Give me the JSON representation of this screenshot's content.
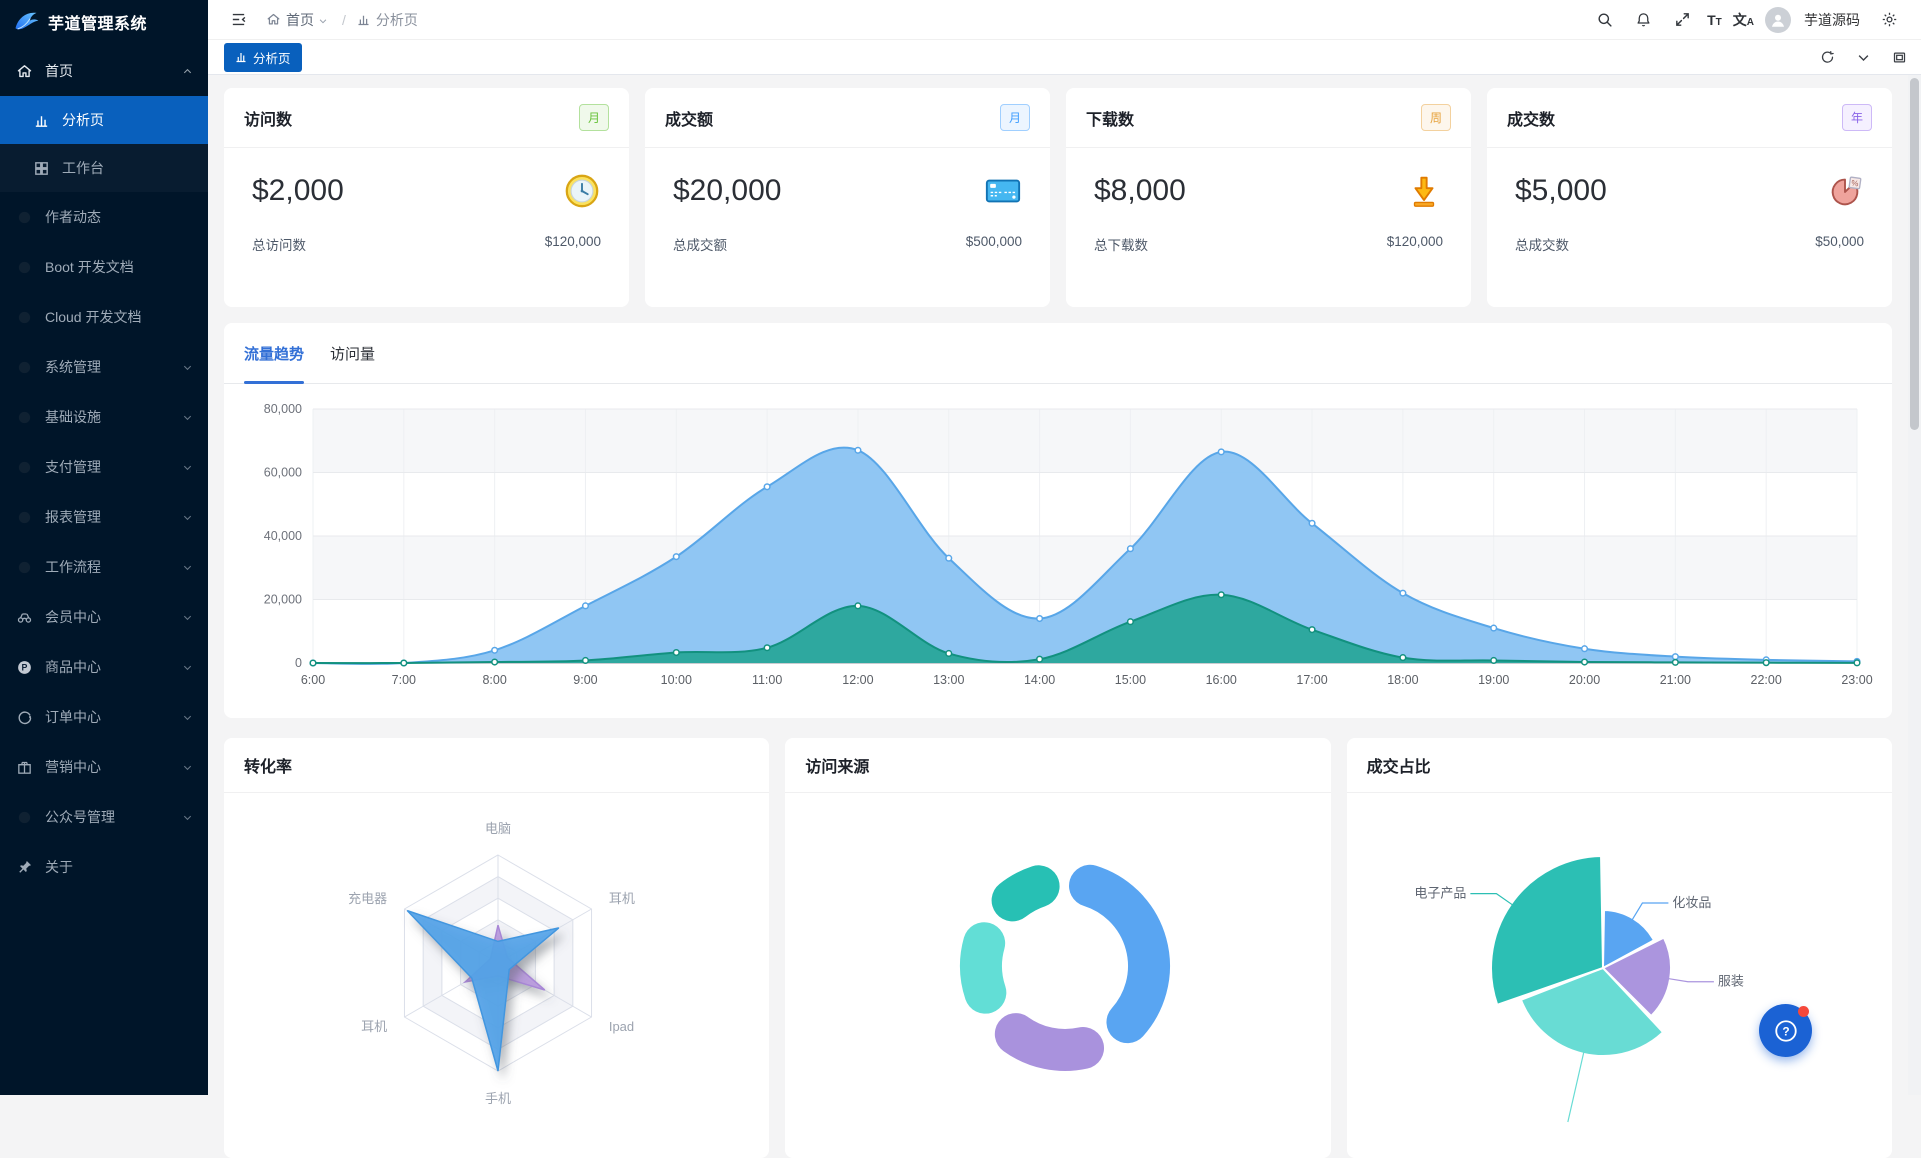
{
  "sidebar": {
    "logo_text": "芋道管理系统",
    "items": [
      {
        "label": "首页",
        "icon": "home",
        "chevron": "up",
        "style": "top-first"
      },
      {
        "label": "分析页",
        "icon": "chart",
        "style": "sub active"
      },
      {
        "label": "工作台",
        "icon": "grid",
        "style": "sub"
      },
      {
        "label": "作者动态",
        "icon": "dot",
        "style": "dim"
      },
      {
        "label": "Boot 开发文档",
        "icon": "dot",
        "style": "dim"
      },
      {
        "label": "Cloud 开发文档",
        "icon": "dot",
        "style": "dim"
      },
      {
        "label": "系统管理",
        "icon": "dot",
        "chevron": "down",
        "style": "dim"
      },
      {
        "label": "基础设施",
        "icon": "dot",
        "chevron": "down",
        "style": "dim"
      },
      {
        "label": "支付管理",
        "icon": "dot",
        "chevron": "down",
        "style": "dim"
      },
      {
        "label": "报表管理",
        "icon": "dot",
        "chevron": "down",
        "style": "dim"
      },
      {
        "label": "工作流程",
        "icon": "dot",
        "chevron": "down",
        "style": "dim"
      },
      {
        "label": "会员中心",
        "icon": "member",
        "chevron": "down",
        "style": ""
      },
      {
        "label": "商品中心",
        "icon": "product",
        "chevron": "down",
        "style": ""
      },
      {
        "label": "订单中心",
        "icon": "order",
        "chevron": "down",
        "style": ""
      },
      {
        "label": "营销中心",
        "icon": "gift",
        "chevron": "down",
        "style": ""
      },
      {
        "label": "公众号管理",
        "icon": "dot",
        "chevron": "down",
        "style": "dim"
      },
      {
        "label": "关于",
        "icon": "pin",
        "style": ""
      }
    ]
  },
  "navbar": {
    "breadcrumb": {
      "home": "首页",
      "separator": "/",
      "current": "分析页"
    },
    "username": "芋道源码"
  },
  "tabbar": {
    "active_tab": "分析页"
  },
  "stat_cards": [
    {
      "title": "访问数",
      "badge": {
        "text": "月",
        "color": "#67c23a",
        "bg": "#f0f9eb",
        "border": "#b3e19d"
      },
      "value": "$2,000",
      "icon": "clock",
      "footer_label": "总访问数",
      "footer_value": "$120,000"
    },
    {
      "title": "成交额",
      "badge": {
        "text": "月",
        "color": "#409eff",
        "bg": "#ecf5ff",
        "border": "#a0cfff"
      },
      "value": "$20,000",
      "icon": "credit-card",
      "footer_label": "总成交额",
      "footer_value": "$500,000"
    },
    {
      "title": "下载数",
      "badge": {
        "text": "周",
        "color": "#e6a23c",
        "bg": "#fdf6ec",
        "border": "#f3d19e"
      },
      "value": "$8,000",
      "icon": "download",
      "footer_label": "总下载数",
      "footer_value": "$120,000"
    },
    {
      "title": "成交数",
      "badge": {
        "text": "年",
        "color": "#8a63e8",
        "bg": "#f5f0ff",
        "border": "#cdb9f7"
      },
      "value": "$5,000",
      "icon": "pie",
      "footer_label": "总成交数",
      "footer_value": "$50,000"
    }
  ],
  "trend_panel": {
    "tabs": [
      "流量趋势",
      "访问量"
    ],
    "active_index": 0
  },
  "panels": {
    "conversion_title": "转化率",
    "source_title": "访问来源",
    "deal_title": "成交占比"
  },
  "chart_data": [
    {
      "id": "traffic-trend",
      "type": "area",
      "title": "流量趋势",
      "x": [
        "6:00",
        "7:00",
        "8:00",
        "9:00",
        "10:00",
        "11:00",
        "12:00",
        "13:00",
        "14:00",
        "15:00",
        "16:00",
        "17:00",
        "18:00",
        "19:00",
        "20:00",
        "21:00",
        "22:00",
        "23:00"
      ],
      "ylim": [
        0,
        80000
      ],
      "yticks": [
        "0",
        "20,000",
        "40,000",
        "60,000",
        "80,000"
      ],
      "grid": "alternating-split-area",
      "legend": "none",
      "series": [
        {
          "name": "series-1",
          "line_color": "#58a6e8",
          "fill_color": "#8bc4f2",
          "values": [
            0,
            0,
            4000,
            18000,
            33500,
            55500,
            67000,
            33000,
            14000,
            36000,
            66500,
            44000,
            22000,
            11000,
            4500,
            2000,
            1000,
            500
          ]
        },
        {
          "name": "series-2",
          "line_color": "#12917f",
          "fill_color": "#2aa79b",
          "values": [
            0,
            0,
            300,
            800,
            3300,
            4800,
            18000,
            3000,
            1200,
            13000,
            21500,
            10500,
            1700,
            800,
            300,
            200,
            100,
            50
          ]
        }
      ]
    },
    {
      "id": "conversion-radar",
      "type": "radar",
      "title": "转化率",
      "indicators": [
        "电脑",
        "耳机",
        "Ipad",
        "手机",
        "耳机",
        "充电器"
      ],
      "max": 100,
      "levels": 5,
      "series": [
        {
          "name": "series-purple",
          "color": "#b89add",
          "stroke": "#a887d6",
          "values": [
            35,
            10,
            50,
            12,
            35,
            8
          ]
        },
        {
          "name": "series-blue",
          "color": "#54a3e8",
          "stroke": "#4296df",
          "values": [
            20,
            65,
            12,
            100,
            28,
            97
          ]
        }
      ]
    },
    {
      "id": "visit-source-donut",
      "type": "pie",
      "subtype": "donut",
      "title": "访问来源",
      "legend": "none",
      "segments": [
        {
          "value": 41,
          "color": "#59a5f2"
        },
        {
          "value": 22,
          "color": "#a992dd"
        },
        {
          "value": 18,
          "color": "#62ded6"
        },
        {
          "value": 14,
          "color": "#27c0b4"
        }
      ]
    },
    {
      "id": "deal-share-rose",
      "type": "pie",
      "subtype": "rose",
      "title": "成交占比",
      "segments": [
        {
          "name": "化妆品",
          "value": 17,
          "radius": 58,
          "color": "#59a5f2"
        },
        {
          "name": "服装",
          "value": 20,
          "radius": 68,
          "color": "#ab95de"
        },
        {
          "name": "",
          "value": 31,
          "radius": 88,
          "color": "#68dcd4"
        },
        {
          "name": "电子产品",
          "value": 30,
          "radius": 112,
          "color": "#2cbfb4"
        }
      ]
    }
  ]
}
